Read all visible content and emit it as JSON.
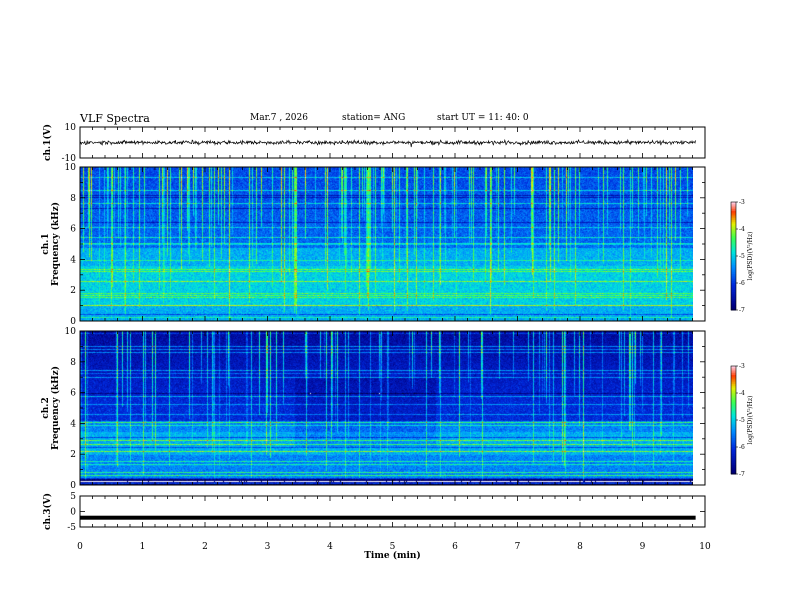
{
  "header": {
    "title": "VLF Spectra",
    "date": "Mar.7  , 2026",
    "station": "station= ANG",
    "start": "start  UT =   11: 40: 0"
  },
  "chart_data": [
    {
      "type": "line",
      "panel": "ch1-waveform",
      "ylabel": "ch.1(V)",
      "ylim": [
        -10,
        10
      ],
      "y_ticks": [
        "10",
        "-10"
      ],
      "baseline": 0,
      "xlim": [
        0,
        10
      ],
      "data_end": 9.85
    },
    {
      "type": "heatmap",
      "panel": "ch1-spectrogram",
      "ylabel": "ch.1\nFrequency (kHz)",
      "ylim": [
        0,
        10
      ],
      "y_ticks": [
        "0",
        "2",
        "4",
        "6",
        "8",
        "10"
      ],
      "xlim": [
        0,
        10
      ],
      "data_end": 9.85,
      "colorbar": {
        "label": "log(PSD)(V²/Hz)",
        "ticks": [
          "-3",
          "-4",
          "-5",
          "-6",
          "-7"
        ],
        "range": [
          -7,
          -3
        ]
      }
    },
    {
      "type": "heatmap",
      "panel": "ch2-spectrogram",
      "ylabel": "ch.2\nFrequency (kHz)",
      "ylim": [
        0,
        10
      ],
      "y_ticks": [
        "0",
        "2",
        "4",
        "6",
        "8",
        "10"
      ],
      "xlim": [
        0,
        10
      ],
      "data_end": 9.85,
      "colorbar": {
        "label": "log(PSD)(V²/Hz)",
        "ticks": [
          "-3",
          "-4",
          "-5",
          "-6",
          "-7"
        ],
        "range": [
          -7,
          -3
        ]
      }
    },
    {
      "type": "line",
      "panel": "ch3-waveform",
      "ylabel": "ch.3(V)",
      "ylim": [
        -5,
        5
      ],
      "y_ticks": [
        "5",
        "0",
        "-5"
      ],
      "baseline": -2,
      "xlim": [
        0,
        10
      ],
      "data_end": 9.85,
      "xlabel": "Time  (min)",
      "x_ticks": [
        "0",
        "1",
        "2",
        "3",
        "4",
        "5",
        "6",
        "7",
        "8",
        "9",
        "10"
      ]
    }
  ]
}
